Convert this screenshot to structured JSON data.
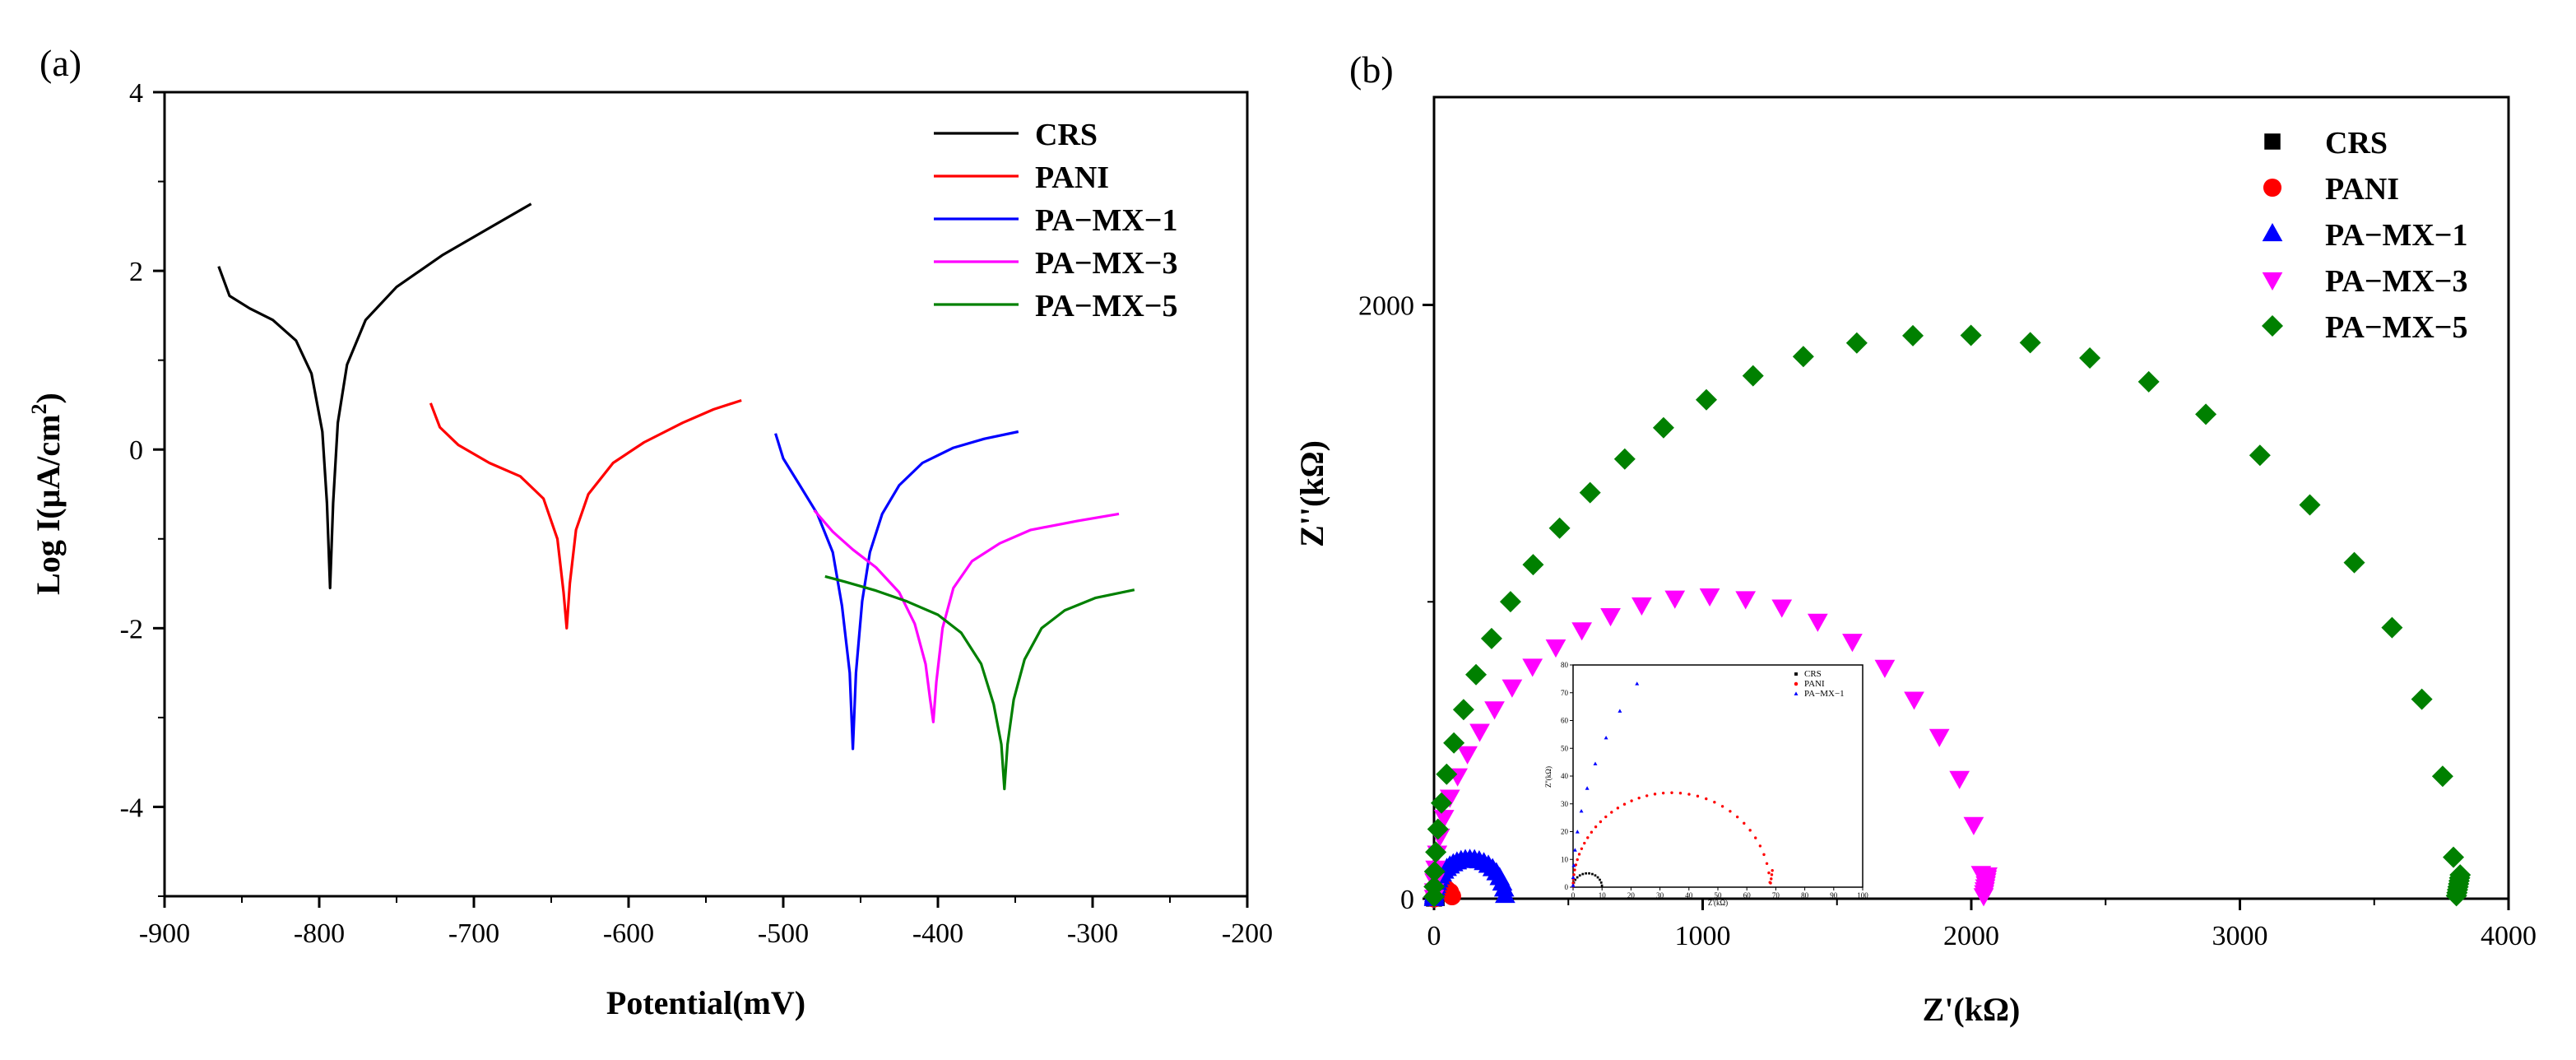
{
  "chart_data": [
    {
      "panel": "(a)",
      "type": "line",
      "title": "",
      "xlabel": "Potential(mV)",
      "ylabel_main": "Log I(μA/cm",
      "ylabel_sup": "2",
      "ylabel_close": ")",
      "xlim": [
        -900,
        -200
      ],
      "ylim": [
        -5,
        4
      ],
      "xticks": [
        -900,
        -800,
        -700,
        -600,
        -500,
        -400,
        -300,
        -200
      ],
      "yticks": [
        -4,
        -2,
        0,
        2,
        4
      ],
      "legend_position": "top-right",
      "series": [
        {
          "name": "CRS",
          "color": "#000000",
          "ecorr": -793,
          "points": [
            [
              -865,
              2.05
            ],
            [
              -858,
              1.72
            ],
            [
              -845,
              1.58
            ],
            [
              -830,
              1.45
            ],
            [
              -815,
              1.22
            ],
            [
              -805,
              0.85
            ],
            [
              -798,
              0.2
            ],
            [
              -795,
              -0.6
            ],
            [
              -793,
              -1.55
            ],
            [
              -791,
              -0.6
            ],
            [
              -788,
              0.3
            ],
            [
              -782,
              0.95
            ],
            [
              -770,
              1.45
            ],
            [
              -750,
              1.82
            ],
            [
              -720,
              2.18
            ],
            [
              -690,
              2.48
            ],
            [
              -663,
              2.75
            ]
          ]
        },
        {
          "name": "PANI",
          "color": "#ff0000",
          "ecorr": -640,
          "points": [
            [
              -728,
              0.52
            ],
            [
              -722,
              0.25
            ],
            [
              -710,
              0.05
            ],
            [
              -690,
              -0.15
            ],
            [
              -670,
              -0.3
            ],
            [
              -655,
              -0.55
            ],
            [
              -646,
              -1.0
            ],
            [
              -642,
              -1.6
            ],
            [
              -640,
              -2.0
            ],
            [
              -638,
              -1.5
            ],
            [
              -634,
              -0.9
            ],
            [
              -626,
              -0.5
            ],
            [
              -610,
              -0.15
            ],
            [
              -590,
              0.08
            ],
            [
              -565,
              0.3
            ],
            [
              -545,
              0.45
            ],
            [
              -527,
              0.55
            ]
          ]
        },
        {
          "name": "PA−MX−1",
          "color": "#0000ff",
          "ecorr": -455,
          "points": [
            [
              -505,
              0.18
            ],
            [
              -500,
              -0.1
            ],
            [
              -490,
              -0.38
            ],
            [
              -478,
              -0.72
            ],
            [
              -468,
              -1.15
            ],
            [
              -462,
              -1.75
            ],
            [
              -457,
              -2.5
            ],
            [
              -455,
              -3.35
            ],
            [
              -453,
              -2.5
            ],
            [
              -449,
              -1.7
            ],
            [
              -444,
              -1.15
            ],
            [
              -436,
              -0.72
            ],
            [
              -425,
              -0.4
            ],
            [
              -410,
              -0.15
            ],
            [
              -390,
              0.02
            ],
            [
              -370,
              0.12
            ],
            [
              -348,
              0.2
            ]
          ]
        },
        {
          "name": "PA−MX−3",
          "color": "#ff00ff",
          "ecorr": -403,
          "points": [
            [
              -480,
              -0.68
            ],
            [
              -468,
              -0.92
            ],
            [
              -455,
              -1.12
            ],
            [
              -440,
              -1.32
            ],
            [
              -425,
              -1.6
            ],
            [
              -415,
              -1.95
            ],
            [
              -408,
              -2.4
            ],
            [
              -405,
              -2.8
            ],
            [
              -403,
              -3.05
            ],
            [
              -401,
              -2.6
            ],
            [
              -397,
              -2.0
            ],
            [
              -390,
              -1.55
            ],
            [
              -378,
              -1.25
            ],
            [
              -360,
              -1.05
            ],
            [
              -340,
              -0.9
            ],
            [
              -310,
              -0.8
            ],
            [
              -283,
              -0.72
            ]
          ]
        },
        {
          "name": "PA−MX−5",
          "color": "#008000",
          "ecorr": -357,
          "points": [
            [
              -473,
              -1.42
            ],
            [
              -460,
              -1.48
            ],
            [
              -440,
              -1.58
            ],
            [
              -420,
              -1.7
            ],
            [
              -400,
              -1.85
            ],
            [
              -385,
              -2.05
            ],
            [
              -372,
              -2.4
            ],
            [
              -364,
              -2.85
            ],
            [
              -359,
              -3.3
            ],
            [
              -357,
              -3.8
            ],
            [
              -355,
              -3.3
            ],
            [
              -351,
              -2.8
            ],
            [
              -344,
              -2.35
            ],
            [
              -333,
              -2.0
            ],
            [
              -318,
              -1.8
            ],
            [
              -298,
              -1.66
            ],
            [
              -273,
              -1.57
            ]
          ]
        }
      ]
    },
    {
      "panel": "(b)",
      "type": "scatter",
      "title": "",
      "xlabel": "Z'(kΩ)",
      "ylabel": "Z''(kΩ)",
      "xlim": [
        0,
        4000
      ],
      "ylim": [
        0,
        2700
      ],
      "xticks": [
        0,
        1000,
        2000,
        3000,
        4000
      ],
      "yticks": [
        0,
        2000
      ],
      "legend_position": "top-right",
      "series": [
        {
          "name": "CRS",
          "marker": "square",
          "color": "#000000",
          "diameter": 10
        },
        {
          "name": "PANI",
          "marker": "circle",
          "color": "#ff0000",
          "diameter": 68
        },
        {
          "name": "PA−MX−1",
          "marker": "triangle-up",
          "color": "#0000ff",
          "diameter": 265
        },
        {
          "name": "PA−MX−3",
          "marker": "triangle-down",
          "color": "#ff00ff",
          "diameter": 2040
        },
        {
          "name": "PA−MX−5",
          "marker": "diamond",
          "color": "#008000",
          "diameter": 3800
        }
      ],
      "inset": {
        "xlabel": "Z'(kΩ)",
        "ylabel": "Z''(kΩ)",
        "xlim": [
          0,
          100
        ],
        "ylim": [
          0,
          80
        ],
        "xticks": [
          0,
          10,
          20,
          30,
          40,
          50,
          60,
          70,
          80,
          90,
          100
        ],
        "yticks": [
          0,
          10,
          20,
          30,
          40,
          50,
          60,
          70,
          80
        ],
        "legend": [
          "CRS",
          "PANI",
          "PA−MX−1"
        ]
      }
    }
  ]
}
